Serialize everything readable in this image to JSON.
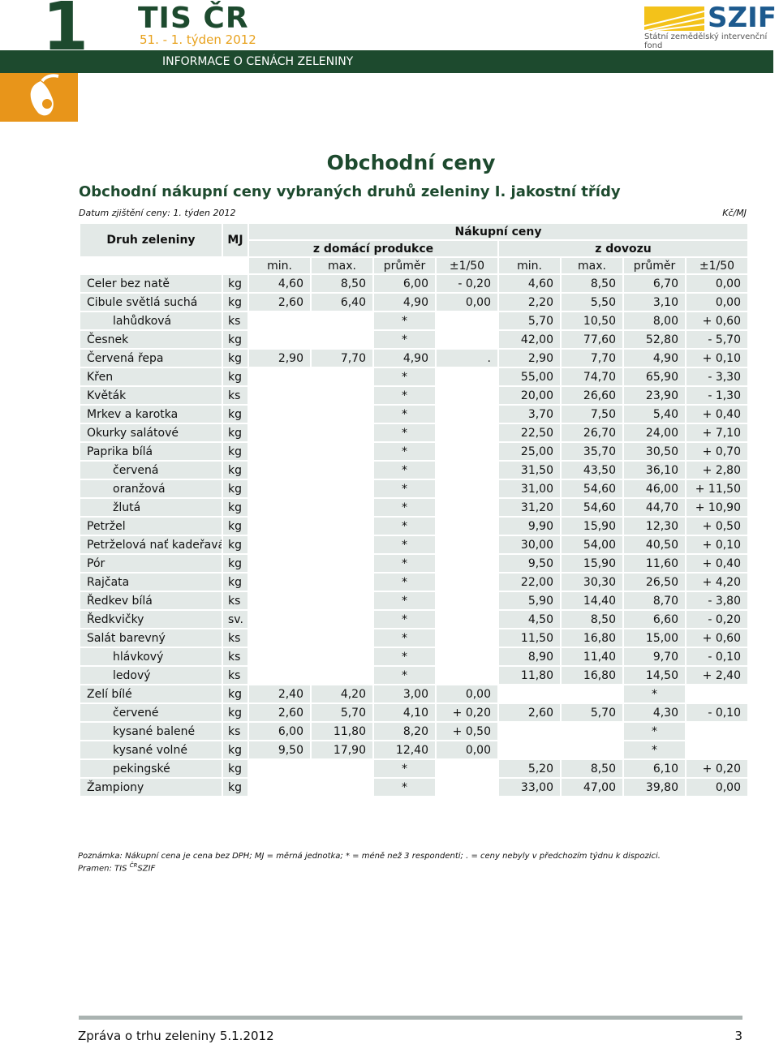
{
  "header": {
    "number": "1",
    "brand": "TIS ČR",
    "week": "51. - 1. týden 2012",
    "logo": "SZIF",
    "logo_sub": "Státní zemědělský intervenční fond",
    "banner": "INFORMACE O CENÁCH ZELENINY"
  },
  "title": "Obchodní ceny",
  "subtitle": "Obchodní nákupní ceny vybraných druhů zeleniny I. jakostní třídy",
  "date": "Datum zjištění ceny: 1. týden 2012",
  "unit": "Kč/MJ",
  "table": {
    "head": {
      "name": "Druh zeleniny",
      "mj": "MJ",
      "group": "Nákupní ceny",
      "domestic": "z domácí produkce",
      "import": "z dovozu",
      "columns": [
        "min.",
        "max.",
        "průměr",
        "±1/50",
        "min.",
        "max.",
        "průměr",
        "±1/50"
      ]
    },
    "rows": [
      {
        "name": "Celer bez natě",
        "mj": "kg",
        "values": [
          "4,60",
          "8,50",
          "6,00",
          "- 0,20",
          "4,60",
          "8,50",
          "6,70",
          "0,00"
        ]
      },
      {
        "name": "Cibule světlá suchá",
        "mj": "kg",
        "values": [
          "2,60",
          "6,40",
          "4,90",
          "0,00",
          "2,20",
          "5,50",
          "3,10",
          "0,00"
        ],
        "children": [
          {
            "name": "lahůdková",
            "mj": "ks",
            "values": [
              null,
              null,
              "*",
              null,
              "5,70",
              "10,50",
              "8,00",
              "+ 0,60"
            ]
          }
        ]
      },
      {
        "name": "Česnek",
        "mj": "kg",
        "values": [
          null,
          null,
          "*",
          null,
          "42,00",
          "77,60",
          "52,80",
          "- 5,70"
        ]
      },
      {
        "name": "Červená řepa",
        "mj": "kg",
        "values": [
          "2,90",
          "7,70",
          "4,90",
          ".",
          "2,90",
          "7,70",
          "4,90",
          "+ 0,10"
        ]
      },
      {
        "name": "Křen",
        "mj": "kg",
        "values": [
          null,
          null,
          "*",
          null,
          "55,00",
          "74,70",
          "65,90",
          "- 3,30"
        ]
      },
      {
        "name": "Květák",
        "mj": "ks",
        "values": [
          null,
          null,
          "*",
          null,
          "20,00",
          "26,60",
          "23,90",
          "- 1,30"
        ]
      },
      {
        "name": "Mrkev a karotka",
        "mj": "kg",
        "values": [
          null,
          null,
          "*",
          null,
          "3,70",
          "7,50",
          "5,40",
          "+ 0,40"
        ]
      },
      {
        "name": "Okurky salátové",
        "mj": "kg",
        "values": [
          null,
          null,
          "*",
          null,
          "22,50",
          "26,70",
          "24,00",
          "+ 7,10"
        ]
      },
      {
        "name": "Paprika bílá",
        "mj": "kg",
        "values": [
          null,
          null,
          "*",
          null,
          "25,00",
          "35,70",
          "30,50",
          "+ 0,70"
        ],
        "children": [
          {
            "name": "červená",
            "mj": "kg",
            "values": [
              null,
              null,
              "*",
              null,
              "31,50",
              "43,50",
              "36,10",
              "+ 2,80"
            ]
          },
          {
            "name": "oranžová",
            "mj": "kg",
            "values": [
              null,
              null,
              "*",
              null,
              "31,00",
              "54,60",
              "46,00",
              "+ 11,50"
            ]
          },
          {
            "name": "žlutá",
            "mj": "kg",
            "values": [
              null,
              null,
              "*",
              null,
              "31,20",
              "54,60",
              "44,70",
              "+ 10,90"
            ]
          }
        ]
      },
      {
        "name": "Petržel",
        "mj": "kg",
        "values": [
          null,
          null,
          "*",
          null,
          "9,90",
          "15,90",
          "12,30",
          "+ 0,50"
        ]
      },
      {
        "name": "Petrželová nať kadeřavá",
        "mj": "kg",
        "values": [
          null,
          null,
          "*",
          null,
          "30,00",
          "54,00",
          "40,50",
          "+ 0,10"
        ]
      },
      {
        "name": "Pór",
        "mj": "kg",
        "values": [
          null,
          null,
          "*",
          null,
          "9,50",
          "15,90",
          "11,60",
          "+ 0,40"
        ]
      },
      {
        "name": "Rajčata",
        "mj": "kg",
        "values": [
          null,
          null,
          "*",
          null,
          "22,00",
          "30,30",
          "26,50",
          "+ 4,20"
        ]
      },
      {
        "name": "Ředkev bílá",
        "mj": "ks",
        "values": [
          null,
          null,
          "*",
          null,
          "5,90",
          "14,40",
          "8,70",
          "- 3,80"
        ]
      },
      {
        "name": "Ředkvičky",
        "mj": "sv.",
        "values": [
          null,
          null,
          "*",
          null,
          "4,50",
          "8,50",
          "6,60",
          "- 0,20"
        ]
      },
      {
        "name": "Salát barevný",
        "mj": "ks",
        "values": [
          null,
          null,
          "*",
          null,
          "11,50",
          "16,80",
          "15,00",
          "+ 0,60"
        ],
        "children": [
          {
            "name": "hlávkový",
            "mj": "ks",
            "values": [
              null,
              null,
              "*",
              null,
              "8,90",
              "11,40",
              "9,70",
              "- 0,10"
            ]
          },
          {
            "name": "ledový",
            "mj": "ks",
            "values": [
              null,
              null,
              "*",
              null,
              "11,80",
              "16,80",
              "14,50",
              "+ 2,40"
            ]
          }
        ]
      },
      {
        "name": "Zelí bílé",
        "mj": "kg",
        "values": [
          "2,40",
          "4,20",
          "3,00",
          "0,00",
          null,
          null,
          "*",
          null
        ],
        "children": [
          {
            "name": "červené",
            "mj": "kg",
            "values": [
              "2,60",
              "5,70",
              "4,10",
              "+ 0,20",
              "2,60",
              "5,70",
              "4,30",
              "- 0,10"
            ]
          },
          {
            "name": "kysané balené",
            "mj": "ks",
            "values": [
              "6,00",
              "11,80",
              "8,20",
              "+ 0,50",
              null,
              null,
              "*",
              null
            ]
          },
          {
            "name": "kysané volné",
            "mj": "kg",
            "values": [
              "9,50",
              "17,90",
              "12,40",
              "0,00",
              null,
              null,
              "*",
              null
            ]
          },
          {
            "name": "pekingské",
            "mj": "kg",
            "values": [
              null,
              null,
              "*",
              null,
              "5,20",
              "8,50",
              "6,10",
              "+ 0,20"
            ]
          }
        ]
      },
      {
        "name": "Žampiony",
        "mj": "kg",
        "values": [
          null,
          null,
          "*",
          null,
          "33,00",
          "47,00",
          "39,80",
          "0,00"
        ]
      }
    ]
  },
  "note": "Poznámka: Nákupní cena je cena bez DPH; MJ = měrná jednotka; * = méně než 3 respondenti; . = ceny nebyly v předchozím týdnu k dispozici.",
  "source": {
    "prefix": "Pramen: TIS ",
    "sup": "ČR",
    "suffix": "SZIF"
  },
  "footer": {
    "text": "Zpráva o trhu zeleniny 5.1.2012",
    "page": "3"
  }
}
